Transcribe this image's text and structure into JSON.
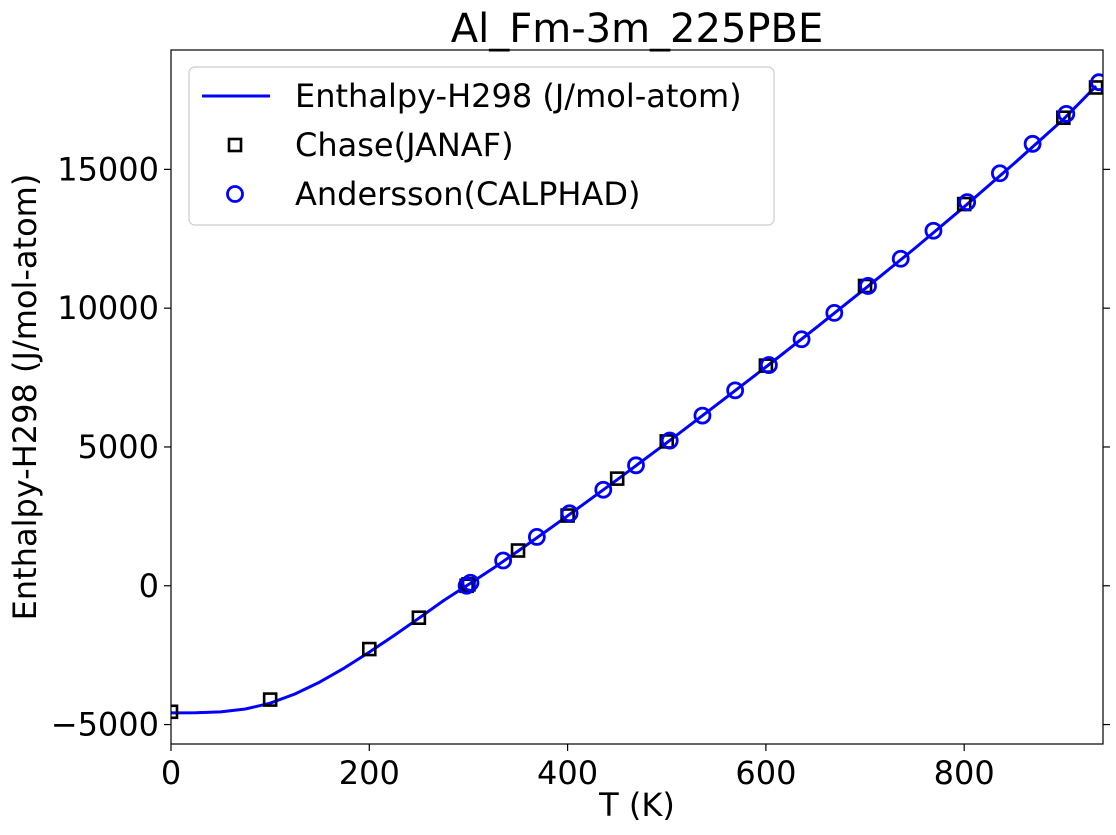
{
  "chart_data": {
    "type": "line",
    "title": "Al_Fm-3m_225PBE",
    "xlabel": "T (K)",
    "ylabel": "Enthalpy-H298 (J/mol-atom)",
    "xlim": [
      0,
      940
    ],
    "ylim": [
      -5700,
      19300
    ],
    "x_ticks": [
      0,
      200,
      400,
      600,
      800
    ],
    "x_tick_labels": [
      "0",
      "200",
      "400",
      "600",
      "800"
    ],
    "y_ticks": [
      -5000,
      0,
      5000,
      10000,
      15000
    ],
    "y_tick_labels": [
      "−5000",
      "0",
      "5000",
      "10000",
      "15000"
    ],
    "grid": false,
    "legend_position": "upper-left",
    "series": [
      {
        "name": "Enthalpy-H298 (J/mol-atom)",
        "kind": "line",
        "color": "#0000ff",
        "x": [
          0,
          25,
          50,
          75,
          100,
          125,
          150,
          175,
          200,
          225,
          250,
          275,
          298.15,
          325,
          350,
          375,
          400,
          450,
          500,
          550,
          600,
          650,
          700,
          750,
          800,
          850,
          900,
          933
        ],
        "y": [
          -4580,
          -4577,
          -4545,
          -4440,
          -4230,
          -3900,
          -3470,
          -2960,
          -2390,
          -1790,
          -1170,
          -530,
          0,
          630,
          1250,
          1880,
          2520,
          3820,
          5150,
          6510,
          7880,
          9280,
          10700,
          12150,
          13650,
          15200,
          16800,
          18000
        ]
      },
      {
        "name": "Chase(JANAF)",
        "kind": "marker-square",
        "color": "#000000",
        "x": [
          0,
          100,
          200,
          250,
          298.15,
          300,
          350,
          400,
          450,
          500,
          600,
          700,
          800,
          900,
          933
        ],
        "y": [
          -4540,
          -4100,
          -2280,
          -1150,
          0,
          50,
          1270,
          2530,
          3860,
          5200,
          7930,
          10800,
          13750,
          16860,
          17950
        ]
      },
      {
        "name": "Andersson(CALPHAD)",
        "kind": "marker-circle",
        "color": "#0000ff",
        "x": [
          298.15,
          302,
          335,
          369,
          402,
          436,
          469,
          503,
          536,
          569,
          603,
          636,
          669,
          703,
          736,
          769,
          803,
          836,
          869,
          903,
          936
        ],
        "y": [
          0,
          110,
          910,
          1760,
          2610,
          3460,
          4340,
          5230,
          6130,
          7040,
          7950,
          8880,
          9830,
          10800,
          11780,
          12790,
          13820,
          14860,
          15920,
          17000,
          18140
        ]
      }
    ]
  }
}
